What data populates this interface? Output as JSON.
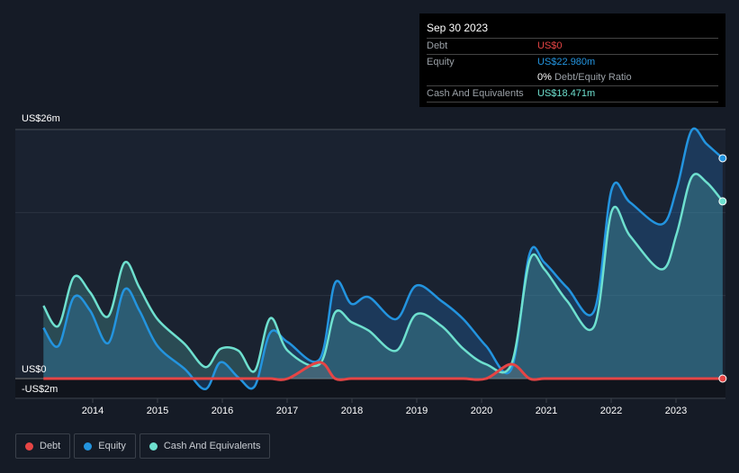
{
  "tooltip": {
    "date": "Sep 30 2023",
    "debt_label": "Debt",
    "debt_value": "US$0",
    "equity_label": "Equity",
    "equity_value": "US$22.980m",
    "ratio_value": "0%",
    "ratio_label": "Debt/Equity Ratio",
    "cash_label": "Cash And Equivalents",
    "cash_value": "US$18.471m"
  },
  "legend": {
    "debt": "Debt",
    "equity": "Equity",
    "cash": "Cash And Equivalents"
  },
  "chart_data": {
    "type": "area",
    "ylabel_top": "US$26m",
    "ylabel_zero": "US$0",
    "ylabel_bottom": "-US$2m",
    "ylim": [
      -2,
      26
    ],
    "xlim": [
      2013.24,
      2023.75
    ],
    "xticks": [
      "2014",
      "2015",
      "2016",
      "2017",
      "2018",
      "2019",
      "2020",
      "2021",
      "2022",
      "2023"
    ],
    "colors": {
      "debt": "#e64545",
      "equity": "#2394df",
      "cash": "#6ee0cf"
    },
    "x": [
      2013.24,
      2013.47,
      2013.71,
      2013.96,
      2014.24,
      2014.49,
      2014.72,
      2015.0,
      2015.42,
      2015.74,
      2015.97,
      2016.25,
      2016.5,
      2016.74,
      2017.01,
      2017.5,
      2017.74,
      2017.99,
      2018.26,
      2018.68,
      2018.99,
      2019.38,
      2019.72,
      2020.07,
      2020.46,
      2020.74,
      2020.97,
      2021.32,
      2021.74,
      2022.01,
      2022.29,
      2022.78,
      2023.01,
      2023.24,
      2023.47,
      2023.72
    ],
    "series": [
      {
        "name": "Equity",
        "values": [
          5.3,
          3.4,
          8.5,
          7.1,
          3.7,
          9.3,
          7.1,
          3.4,
          1.0,
          -1.1,
          1.7,
          0.1,
          -0.8,
          4.8,
          3.8,
          2.0,
          10.0,
          7.8,
          8.5,
          6.2,
          9.7,
          8.1,
          6.2,
          3.4,
          1.0,
          13.0,
          12.1,
          9.5,
          7.1,
          19.8,
          18.4,
          16.1,
          19.8,
          25.9,
          24.5,
          23.0
        ]
      },
      {
        "name": "Cash And Equivalents",
        "values": [
          7.6,
          5.5,
          10.6,
          9.0,
          6.5,
          12.1,
          9.5,
          6.2,
          3.6,
          1.2,
          3.1,
          2.9,
          0.8,
          6.3,
          2.9,
          1.5,
          6.9,
          5.9,
          5.0,
          2.9,
          6.7,
          5.5,
          3.1,
          1.5,
          1.5,
          12.3,
          11.4,
          8.1,
          5.5,
          17.5,
          14.9,
          11.4,
          15.1,
          21.0,
          20.5,
          18.5
        ]
      },
      {
        "name": "Debt",
        "values": [
          0,
          0,
          0,
          0,
          0,
          0,
          0,
          0,
          0,
          0,
          0,
          0,
          0,
          0,
          0,
          1.7,
          0,
          0,
          0,
          0,
          0,
          0,
          0,
          0,
          1.5,
          0,
          0,
          0,
          0,
          0,
          0,
          0,
          0,
          0,
          0,
          0
        ]
      }
    ]
  }
}
